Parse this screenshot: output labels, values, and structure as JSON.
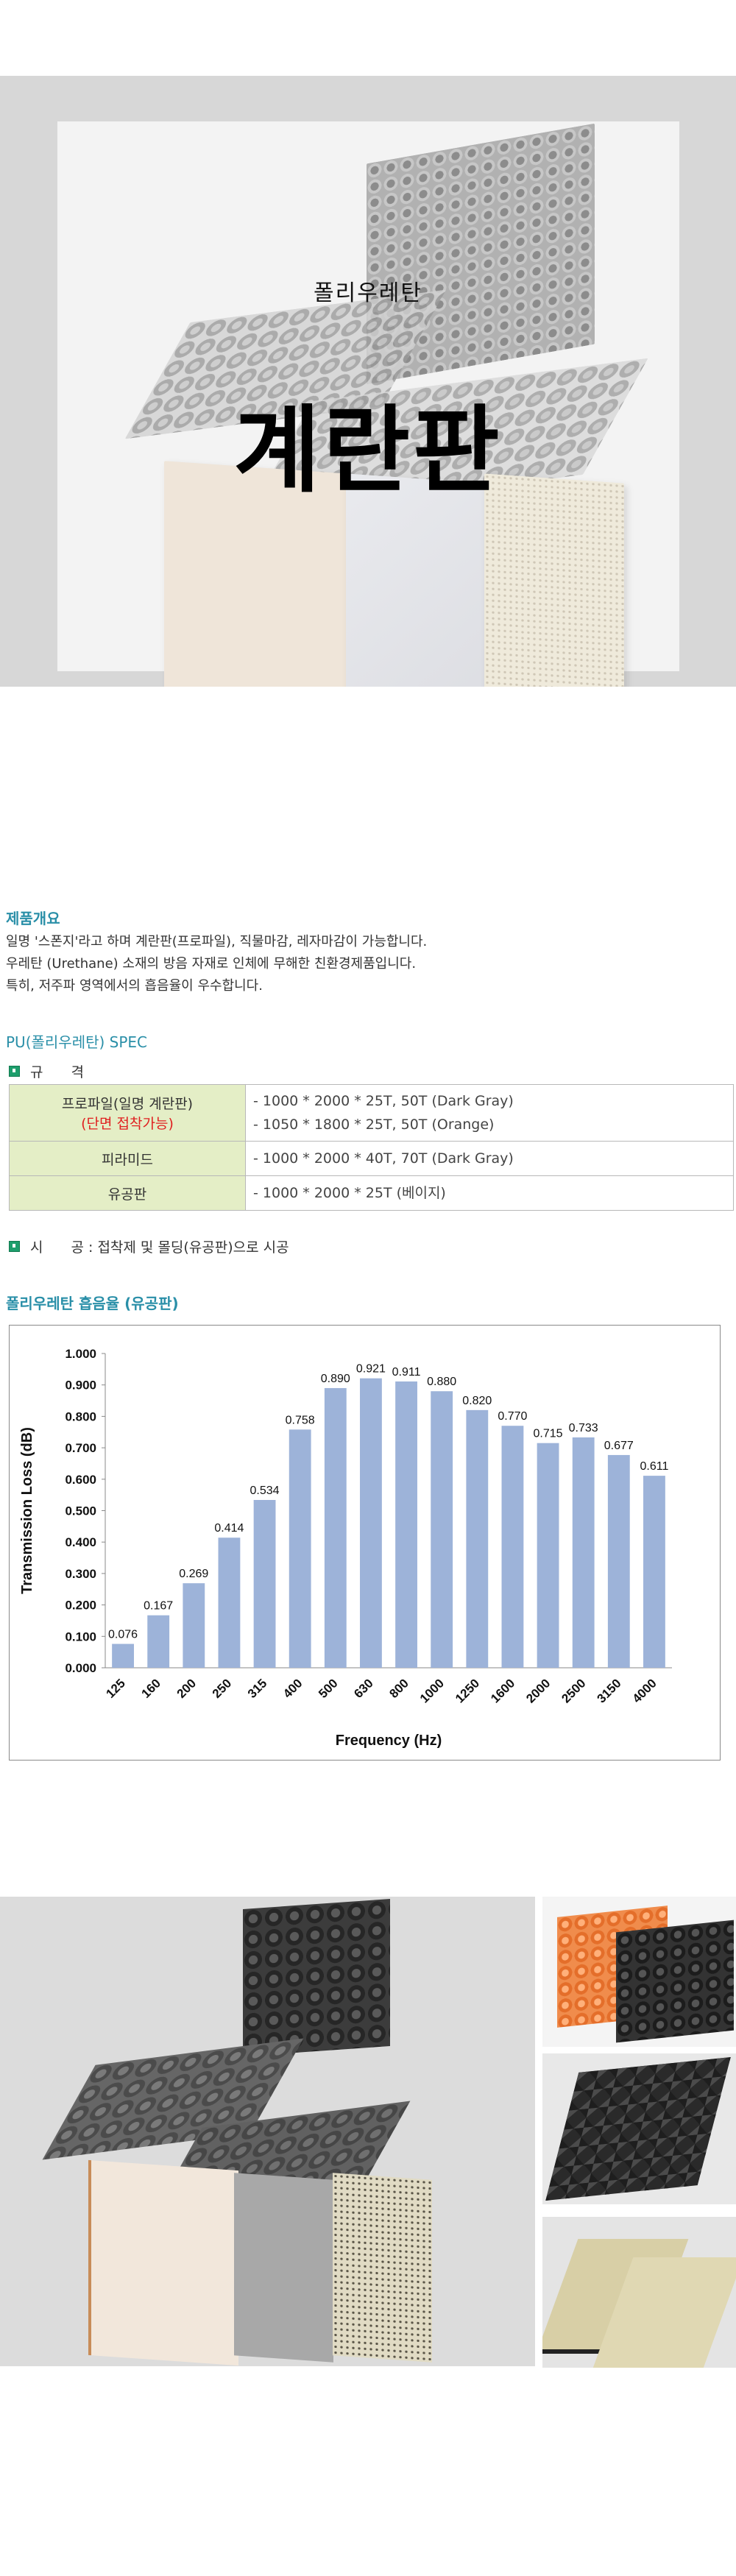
{
  "hero": {
    "subtitle": "폴리우레탄",
    "title": "계란판"
  },
  "overview": {
    "heading": "제품개요",
    "lines": [
      "일명 '스폰지'라고 하며 계란판(프로파일), 직물마감, 레자마감이 가능합니다.",
      "우레탄 (Urethane) 소재의 방음 자재로 인체에 무해한 친환경제품입니다.",
      "특히, 저주파 영역에서의 흡음율이 우수합니다."
    ]
  },
  "spec": {
    "heading": "PU(폴리우레탄) SPEC",
    "bullet1": "규　　격",
    "rows": [
      {
        "name": "프로파일(일명 계란판)",
        "note": "(단면 접착가능)",
        "values": [
          "- 1000 * 2000 * 25T, 50T (Dark Gray)",
          "- 1050 * 1800 * 25T, 50T (Orange)"
        ]
      },
      {
        "name": "피라미드",
        "values": [
          "- 1000 * 2000 * 40T, 70T (Dark Gray)"
        ]
      },
      {
        "name": "유공판",
        "values": [
          "- 1000 * 2000 * 25T (베이지)"
        ]
      }
    ],
    "bullet2": "시　　공 : 접착제 및 몰딩(유공판)으로 시공"
  },
  "chart_section": {
    "heading": "폴리우레탄 흡음율 (유공판)"
  },
  "chart_data": {
    "type": "bar",
    "categories": [
      "125",
      "160",
      "200",
      "250",
      "315",
      "400",
      "500",
      "630",
      "800",
      "1000",
      "1250",
      "1600",
      "2000",
      "2500",
      "3150",
      "4000"
    ],
    "values": [
      0.076,
      0.167,
      0.269,
      0.414,
      0.534,
      0.758,
      0.89,
      0.921,
      0.911,
      0.88,
      0.82,
      0.77,
      0.715,
      0.733,
      0.677,
      0.611
    ],
    "value_labels": [
      "0.076",
      "0.167",
      "0.269",
      "0.414",
      "0.534",
      "0.758",
      "0.890",
      "0.921",
      "0.911",
      "0.880",
      "0.820",
      "0.770",
      "0.715",
      "0.733",
      "0.677",
      "0.611"
    ],
    "xlabel": "Frequency (Hz)",
    "ylabel": "Transmission Loss (dB)",
    "ylim": [
      0,
      1.0
    ],
    "yticks": [
      "0.000",
      "0.100",
      "0.200",
      "0.300",
      "0.400",
      "0.500",
      "0.600",
      "0.700",
      "0.800",
      "0.900",
      "1.000"
    ],
    "bar_color": "#9db3d9",
    "grid": false,
    "legend": "none"
  },
  "colors": {
    "heading": "#2a8fa8",
    "table_header_bg": "#e4eec6",
    "note_red": "#e02020",
    "bullet": "#1d9e6c"
  }
}
